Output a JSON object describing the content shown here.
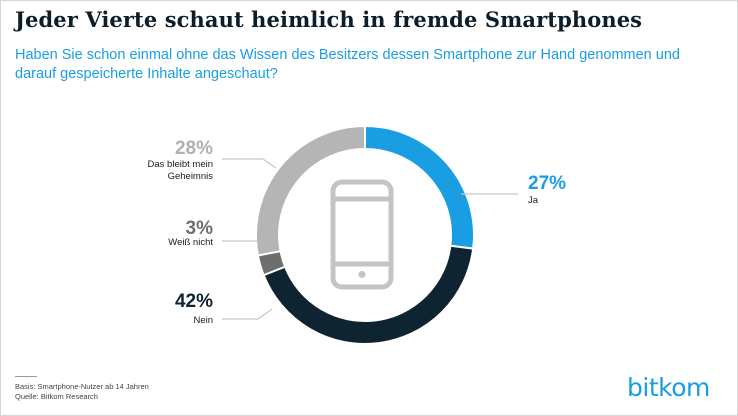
{
  "header": {
    "title": "Jeder Vierte schaut heimlich in fremde Smartphones",
    "subtitle": "Haben Sie schon einmal ohne das Wissen des Besitzers dessen Smartphone zur Hand genommen und darauf gespeicherte Inhalte angeschaut?"
  },
  "chart_data": {
    "type": "pie",
    "categories": [
      "Ja",
      "Nein",
      "Weiß nicht",
      "Das bleibt mein Geheimnis"
    ],
    "values": [
      27,
      42,
      3,
      28
    ],
    "value_labels": [
      "27%",
      "42%",
      "3%",
      "28%"
    ],
    "colors": [
      "#1a9ee3",
      "#0f2431",
      "#6e6e6e",
      "#b5b5b5"
    ],
    "label_colors": [
      "#1a9ee3",
      "#0f2431",
      "#6e6e6e",
      "#b0b0b0"
    ],
    "center_icon": "smartphone-icon",
    "title": "",
    "legend": "none"
  },
  "footer": {
    "basis": "Basis: Smartphone-Nutzer ab 14 Jahren",
    "source": "Quelle: Bitkom Research"
  },
  "logo": {
    "text": "bitkom"
  },
  "colors": {
    "accent": "#1a9ee3",
    "title": "#0d1e2b"
  }
}
